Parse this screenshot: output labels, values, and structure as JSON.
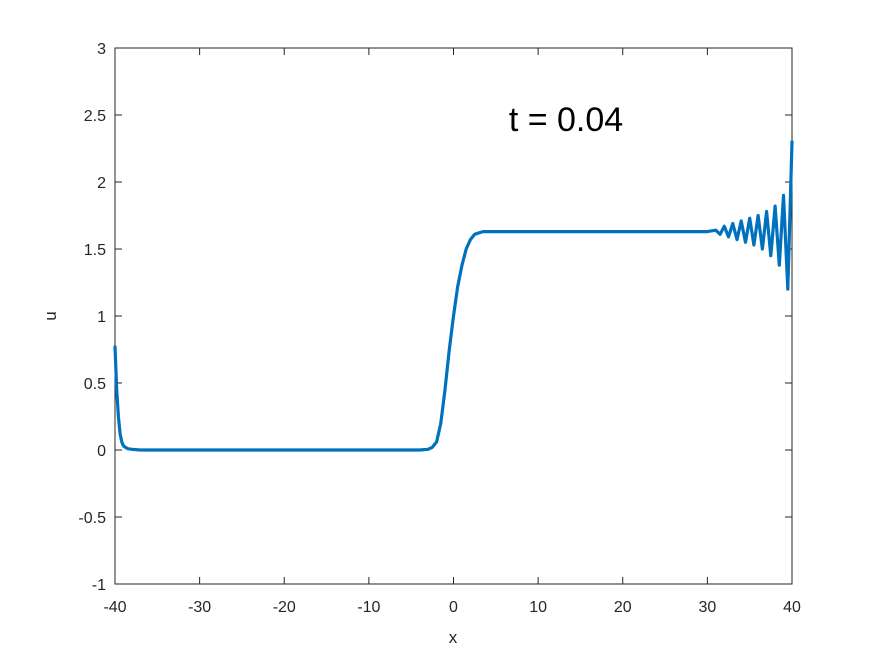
{
  "chart_data": {
    "type": "line",
    "xlabel": "x",
    "ylabel": "u",
    "xlim": [
      -40,
      40
    ],
    "ylim": [
      -1,
      3
    ],
    "xticks": [
      -40,
      -30,
      -20,
      -10,
      0,
      10,
      20,
      30,
      40
    ],
    "yticks": [
      -1,
      -0.5,
      0,
      0.5,
      1,
      1.5,
      2,
      2.5,
      3
    ],
    "annotation": "t = 0.04",
    "grid": false,
    "line_color": "#0072BD",
    "series": [
      {
        "x": [
          -40,
          -39.8,
          -39.6,
          -39.4,
          -39.2,
          -39,
          -38.5,
          -38,
          -37,
          -36,
          -34,
          -30,
          -25,
          -20,
          -15,
          -10,
          -6,
          -4,
          -3,
          -2.5,
          -2,
          -1.5,
          -1,
          -0.5,
          0,
          0.5,
          1,
          1.5,
          2,
          2.5,
          3,
          3.5,
          4,
          5,
          6,
          8,
          10,
          15,
          20,
          25,
          30,
          31,
          31.5,
          32,
          32.5,
          33,
          33.5,
          34,
          34.5,
          35,
          35.5,
          36,
          36.5,
          37,
          37.5,
          38,
          38.5,
          39,
          39.5,
          40
        ],
        "y": [
          0.77,
          0.45,
          0.25,
          0.12,
          0.06,
          0.03,
          0.01,
          0.005,
          0,
          0,
          0,
          0,
          0,
          0,
          0,
          0,
          0,
          0,
          0.005,
          0.02,
          0.06,
          0.2,
          0.45,
          0.75,
          1.0,
          1.22,
          1.38,
          1.5,
          1.57,
          1.61,
          1.62,
          1.63,
          1.63,
          1.63,
          1.63,
          1.63,
          1.63,
          1.63,
          1.63,
          1.63,
          1.63,
          1.64,
          1.61,
          1.67,
          1.59,
          1.69,
          1.57,
          1.71,
          1.55,
          1.73,
          1.53,
          1.75,
          1.5,
          1.78,
          1.45,
          1.82,
          1.38,
          1.9,
          1.2,
          2.3
        ]
      }
    ]
  }
}
